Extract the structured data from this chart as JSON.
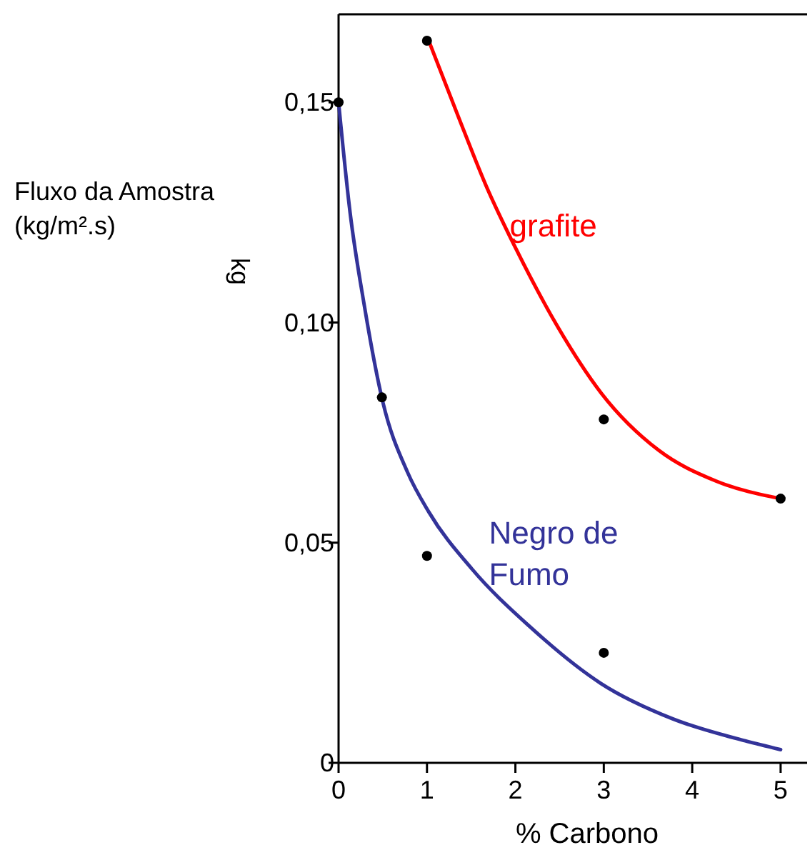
{
  "chart_data": {
    "type": "line",
    "xlabel": "% Carbono",
    "ylabel": "Fluxo da Amostra\n(kg/m².s)",
    "annotations": [
      "kg"
    ],
    "xlim": [
      0,
      5.3
    ],
    "ylim": [
      0,
      0.17
    ],
    "xticks": [
      0,
      1,
      2,
      3,
      4,
      5
    ],
    "yticks": [
      0,
      {
        "value": 0.05,
        "label": "0,05"
      },
      {
        "value": 0.1,
        "label": "0,10"
      },
      {
        "value": 0.15,
        "label": "0,15"
      }
    ],
    "grid": false,
    "marker": "none",
    "line_style": "solid",
    "series": [
      {
        "name": "grafite",
        "color": "#ff0000",
        "x": [
          1.02,
          1.35,
          1.67,
          2.0,
          2.48,
          2.97,
          3.62,
          4.27,
          5.0
        ],
        "values": [
          0.164,
          0.147,
          0.131,
          0.117,
          0.099,
          0.084,
          0.071,
          0.064,
          0.06
        ]
      },
      {
        "name": "Negro de Fumo",
        "color": "#333399",
        "x": [
          0,
          0.13,
          0.29,
          0.5,
          0.78,
          1.02,
          1.51,
          2.16,
          2.97,
          3.78,
          4.6,
          5.0
        ],
        "values": [
          0.15,
          0.125,
          0.104,
          0.082,
          0.066,
          0.057,
          0.044,
          0.031,
          0.018,
          0.01,
          0.005,
          0.003
        ]
      },
      {
        "type": "scatter",
        "color": "#000000",
        "marker": "circle",
        "x": [
          0,
          0.49,
          1.0,
          3.0,
          1.0,
          3.0,
          5.0
        ],
        "values": [
          0.15,
          0.083,
          0.047,
          0.025,
          0.164,
          0.078,
          0.06
        ]
      }
    ]
  }
}
